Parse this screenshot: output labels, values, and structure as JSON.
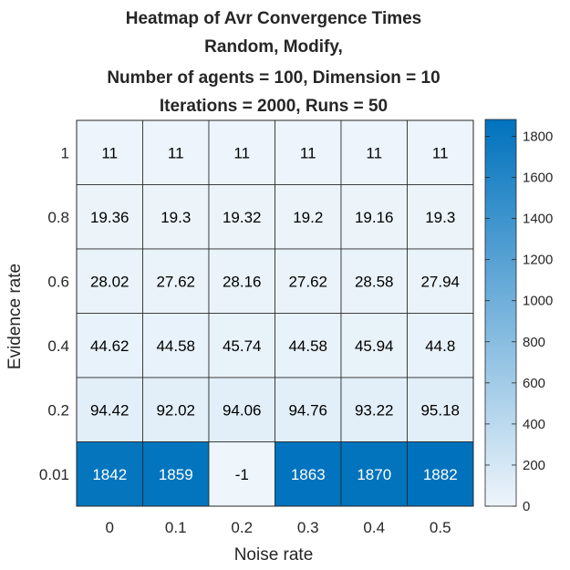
{
  "chart_data": {
    "type": "heatmap",
    "title_lines": [
      "Heatmap of Avr Convergence Times",
      "Random, Modify,",
      "Number of agents = 100, Dimension = 10",
      "Iterations = 2000, Runs = 50"
    ],
    "xlabel": "Noise rate",
    "ylabel": "Evidence rate",
    "x_categories": [
      "0",
      "0.1",
      "0.2",
      "0.3",
      "0.4",
      "0.5"
    ],
    "y_categories": [
      "1",
      "0.8",
      "0.6",
      "0.4",
      "0.2",
      "0.01"
    ],
    "values": [
      [
        "11",
        "11",
        "11",
        "11",
        "11",
        "11"
      ],
      [
        "19.36",
        "19.3",
        "19.32",
        "19.2",
        "19.16",
        "19.3"
      ],
      [
        "28.02",
        "27.62",
        "28.16",
        "27.62",
        "28.58",
        "27.94"
      ],
      [
        "44.62",
        "44.58",
        "45.74",
        "44.58",
        "45.94",
        "44.8"
      ],
      [
        "94.42",
        "92.02",
        "94.06",
        "94.76",
        "93.22",
        "95.18"
      ],
      [
        "1842",
        "1859",
        "-1",
        "1863",
        "1870",
        "1882"
      ]
    ],
    "colorbar": {
      "min": 0,
      "max": 1882,
      "ticks": [
        "0",
        "200",
        "400",
        "600",
        "800",
        "1000",
        "1200",
        "1400",
        "1600",
        "1800"
      ],
      "color_low": "#EEF5FB",
      "color_high": "#0072BD"
    },
    "grid": true,
    "colorbar_placement": "right"
  }
}
